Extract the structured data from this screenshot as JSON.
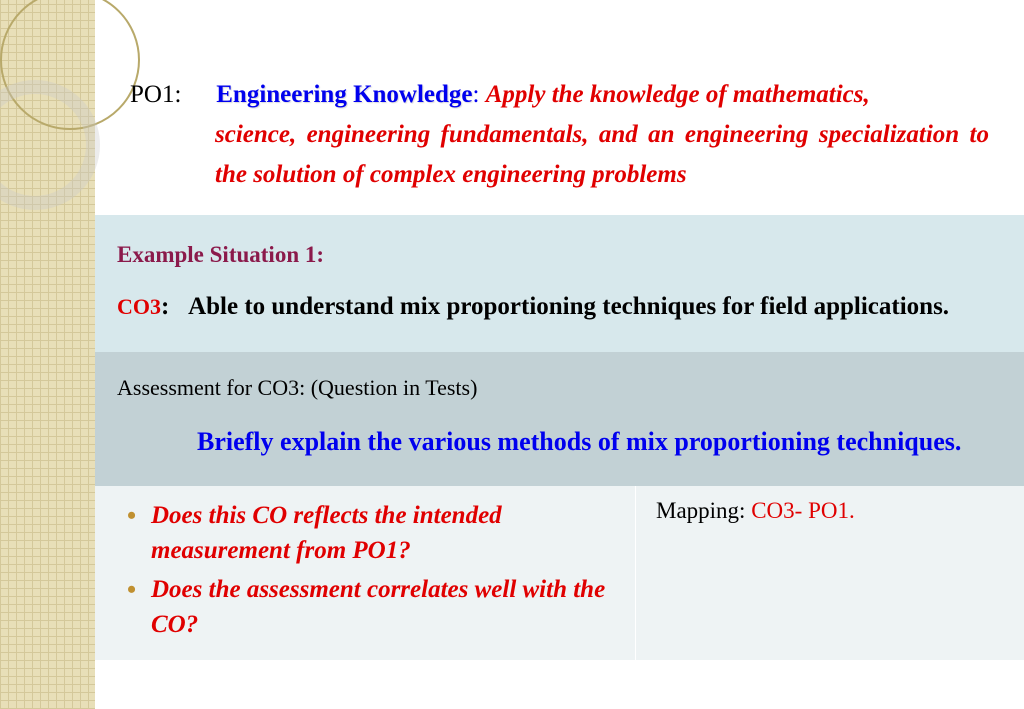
{
  "po": {
    "label": "PO1:",
    "title": "Engineering Knowledge",
    "colon": ":",
    "apply": "Apply",
    "text": "the knowledge of mathematics, science, engineering fundamentals, and an engineering specialization to the solution of complex engineering problems"
  },
  "example": {
    "title": "Example Situation 1:",
    "co_label": "CO3",
    "co_colon": ":",
    "co_text": "Able to understand mix proportioning techniques for field applications."
  },
  "assessment": {
    "label": "Assessment for CO3: (Question in Tests)",
    "question": "Briefly explain the various methods of mix proportioning techniques."
  },
  "bullets": {
    "q1": "Does this CO reflects the intended measurement from PO1?",
    "q2": "Does the assessment  correlates well with the CO?"
  },
  "mapping": {
    "label": "Mapping: ",
    "value": "CO3- PO1."
  },
  "colors": {
    "blue": "#0000ee",
    "red": "#e00000",
    "maroon": "#8b1a4b",
    "row1_bg": "#d7e8ec",
    "row2_bg": "#c2d1d5",
    "row3_bg": "#eef3f4",
    "pattern": "#e8dfb8"
  }
}
